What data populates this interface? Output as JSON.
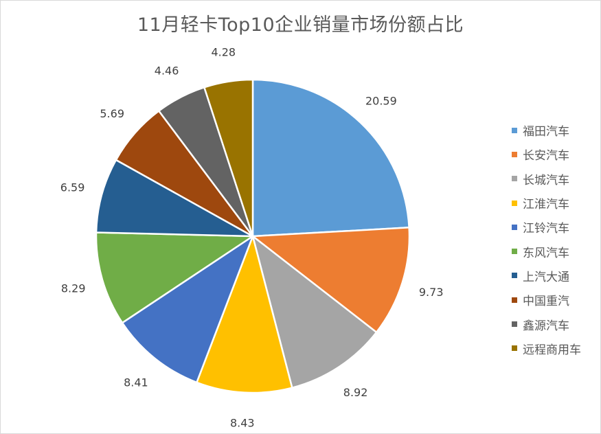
{
  "chart_data": {
    "type": "pie",
    "title": "11月轻卡Top10企业销量市场份额占比",
    "categories": [
      "福田汽车",
      "长安汽车",
      "长城汽车",
      "江淮汽车",
      "江铃汽车",
      "东风汽车",
      "上汽大通",
      "中国重汽",
      "鑫源汽车",
      "远程商用车"
    ],
    "values": [
      20.59,
      9.73,
      8.92,
      8.43,
      8.41,
      8.29,
      6.59,
      5.69,
      4.46,
      4.28
    ],
    "value_labels": [
      "20.59",
      "9.73",
      "8.92",
      "8.43",
      "8.41",
      "8.29",
      "6.59",
      "5.69",
      "4.46",
      "4.28"
    ],
    "colors": [
      "#5B9BD5",
      "#ED7D31",
      "#A5A5A5",
      "#FFC000",
      "#4472C4",
      "#70AD47",
      "#255E91",
      "#9E480E",
      "#636363",
      "#997300"
    ],
    "legend_position": "right",
    "start_angle": "12 o'clock",
    "direction": "clockwise"
  }
}
